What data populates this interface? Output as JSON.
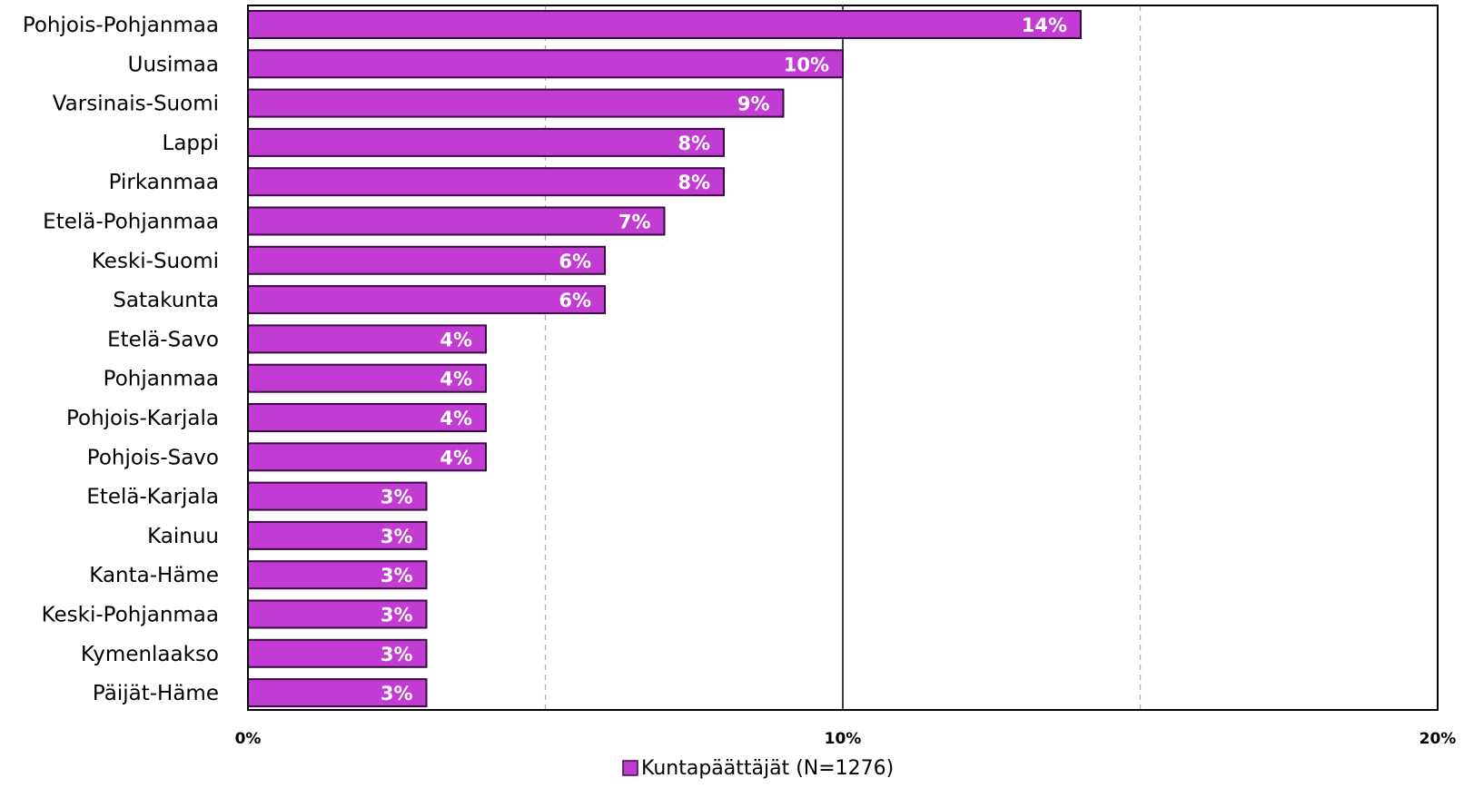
{
  "chart_data": {
    "type": "bar",
    "orientation": "horizontal",
    "categories": [
      "Pohjois-Pohjanmaa",
      "Uusimaa",
      "Varsinais-Suomi",
      "Lappi",
      "Pirkanmaa",
      "Etelä-Pohjanmaa",
      "Keski-Suomi",
      "Satakunta",
      "Etelä-Savo",
      "Pohjanmaa",
      "Pohjois-Karjala",
      "Pohjois-Savo",
      "Etelä-Karjala",
      "Kainuu",
      "Kanta-Häme",
      "Keski-Pohjanmaa",
      "Kymenlaakso",
      "Päijät-Häme"
    ],
    "series": [
      {
        "name": "Kuntapäättäjät (N=1276)",
        "values": [
          14,
          10,
          9,
          8,
          8,
          7,
          6,
          6,
          4,
          4,
          4,
          4,
          3,
          3,
          3,
          3,
          3,
          3
        ],
        "data_labels": [
          "14%",
          "10%",
          "9%",
          "8%",
          "8%",
          "7%",
          "6%",
          "6%",
          "4%",
          "4%",
          "4%",
          "4%",
          "3%",
          "3%",
          "3%",
          "3%",
          "3%",
          "3%"
        ]
      }
    ],
    "x_ticks": [
      0,
      10,
      20
    ],
    "x_tick_labels": [
      "0%",
      "10%",
      "20%"
    ],
    "xlim": [
      0,
      20
    ],
    "minor_gridlines": [
      5,
      15
    ],
    "grid": true,
    "legend_position": "bottom",
    "colors": {
      "bar_fill": "#c23bd2",
      "bar_edge": "#3b0a45",
      "data_label": "#ffffff",
      "major_grid": "#000000",
      "minor_grid": "#b0b0b0",
      "text": "#000000"
    }
  }
}
